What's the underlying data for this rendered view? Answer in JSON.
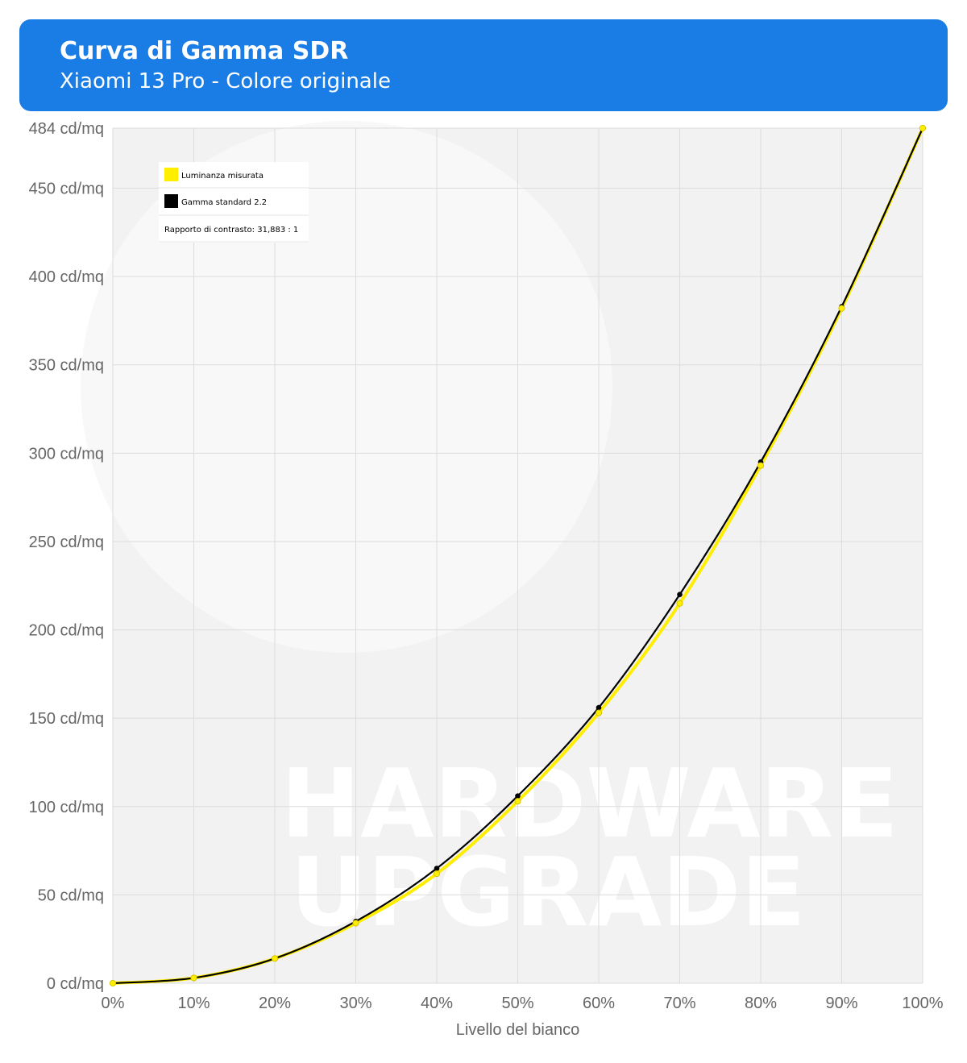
{
  "header": {
    "title": "Curva di Gamma SDR",
    "subtitle": "Xiaomi 13 Pro - Colore originale"
  },
  "watermark": {
    "line1": "HARDWARE",
    "line2": "UPGRADE"
  },
  "colors": {
    "header_bg": "#1a7de6",
    "measured": "#ffee00",
    "measured_edge": "#d6c400",
    "standard": "#000000",
    "plot_bg": "#f2f2f2",
    "grid": "#dcdcdc"
  },
  "chart_data": {
    "type": "line",
    "title": "Curva di Gamma SDR",
    "subtitle": "Xiaomi 13 Pro - Colore originale",
    "xlabel": "Livello del bianco",
    "ylabel": "",
    "x": [
      0,
      10,
      20,
      30,
      40,
      50,
      60,
      70,
      80,
      90,
      100
    ],
    "x_tick_labels": [
      "0%",
      "10%",
      "20%",
      "30%",
      "40%",
      "50%",
      "60%",
      "70%",
      "80%",
      "90%",
      "100%"
    ],
    "y_ticks": [
      0,
      50,
      100,
      150,
      200,
      250,
      300,
      350,
      400,
      450,
      484
    ],
    "y_tick_labels": [
      "0 cd/mq",
      "50 cd/mq",
      "100 cd/mq",
      "150 cd/mq",
      "200 cd/mq",
      "250 cd/mq",
      "300 cd/mq",
      "350 cd/mq",
      "400 cd/mq",
      "450 cd/mq",
      "484 cd/mq"
    ],
    "xlim": [
      0,
      100
    ],
    "ylim": [
      0,
      484
    ],
    "grid": true,
    "legend_position": "top-left",
    "series": [
      {
        "name": "Luminanza misurata",
        "color": "#ffee00",
        "values": [
          0,
          3,
          14,
          34,
          62,
          103,
          153,
          215,
          293,
          382,
          484
        ]
      },
      {
        "name": "Gamma standard 2.2",
        "color": "#000000",
        "values": [
          0,
          3,
          14,
          35,
          65,
          106,
          156,
          220,
          295,
          383,
          484
        ]
      }
    ],
    "annotations": [
      "Rapporto di contrasto: 31,883 : 1"
    ]
  }
}
